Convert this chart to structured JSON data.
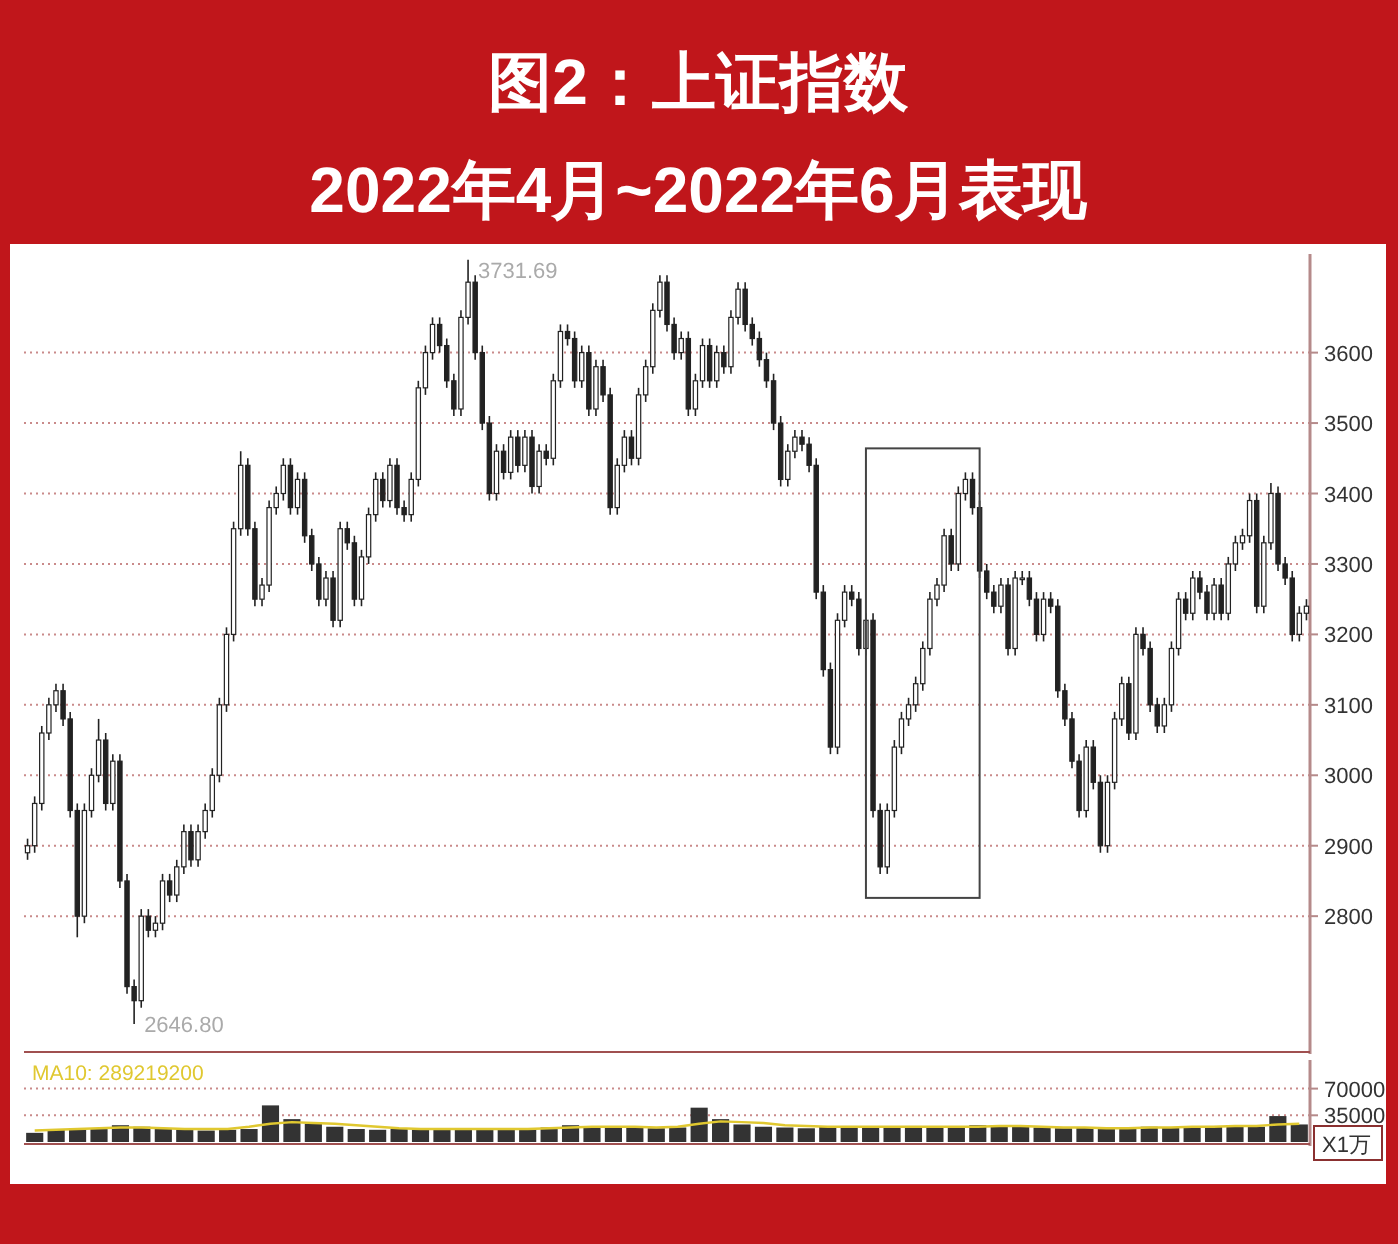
{
  "chart_data": [
    {
      "type": "candlestick",
      "title": "图2：上证指数",
      "subtitle": "2022年4月~2022年6月表现",
      "color": "#222222",
      "categories": [
        null,
        null,
        null,
        null,
        null,
        null,
        null,
        null,
        null,
        null,
        null,
        null,
        null,
        null,
        null,
        null,
        null,
        null,
        null,
        null,
        null,
        null,
        null,
        null,
        null,
        null,
        null,
        null,
        null,
        null,
        null,
        null,
        null,
        null,
        null,
        null,
        null,
        null,
        null,
        null,
        null,
        null,
        null,
        null,
        null,
        null,
        null,
        null,
        null,
        null,
        null,
        null,
        null,
        null,
        null,
        null,
        null,
        null,
        null,
        null,
        null,
        null,
        null,
        null,
        null,
        null,
        null,
        null,
        null,
        null,
        null,
        null,
        null,
        null,
        null,
        null,
        null,
        null,
        null,
        null,
        null,
        null,
        null,
        null,
        null,
        null,
        null,
        null,
        null,
        null,
        null,
        null,
        null,
        null,
        null,
        null,
        null,
        null,
        null,
        null,
        null,
        null,
        null,
        null,
        null,
        null,
        null,
        null,
        null,
        null,
        null,
        null,
        null,
        null,
        null,
        null,
        null,
        null,
        null,
        null,
        null,
        null,
        null,
        null,
        null,
        null,
        null,
        null,
        null,
        null,
        null,
        null,
        null,
        null,
        null,
        null,
        null,
        null,
        null,
        null,
        null,
        null,
        null,
        null,
        null,
        null,
        null,
        null,
        null,
        null,
        null,
        null,
        null,
        null,
        null,
        null,
        null,
        null,
        null,
        null,
        null,
        null,
        null,
        null,
        null,
        null,
        null,
        null,
        null,
        null,
        null,
        null,
        null,
        null,
        null,
        null,
        null,
        null,
        null,
        null,
        null
      ],
      "ohlc": [
        [
          2890,
          2910,
          2880,
          2900
        ],
        [
          2900,
          2970,
          2890,
          2960
        ],
        [
          2960,
          3070,
          2950,
          3060
        ],
        [
          3060,
          3110,
          3050,
          3100
        ],
        [
          3100,
          3130,
          3090,
          3120
        ],
        [
          3120,
          3130,
          3070,
          3080
        ],
        [
          3080,
          3090,
          2940,
          2950
        ],
        [
          2950,
          2960,
          2770,
          2800
        ],
        [
          2800,
          2960,
          2790,
          2950
        ],
        [
          2950,
          3010,
          2940,
          3000
        ],
        [
          3000,
          3080,
          2990,
          3050
        ],
        [
          3050,
          3060,
          2950,
          2960
        ],
        [
          2960,
          3030,
          2950,
          3020
        ],
        [
          3020,
          3030,
          2840,
          2850
        ],
        [
          2850,
          2860,
          2690,
          2700
        ],
        [
          2700,
          2710,
          2646.8,
          2680
        ],
        [
          2680,
          2810,
          2670,
          2800
        ],
        [
          2800,
          2810,
          2770,
          2780
        ],
        [
          2780,
          2800,
          2770,
          2790
        ],
        [
          2790,
          2860,
          2780,
          2850
        ],
        [
          2850,
          2860,
          2820,
          2830
        ],
        [
          2830,
          2880,
          2820,
          2870
        ],
        [
          2870,
          2930,
          2860,
          2920
        ],
        [
          2920,
          2930,
          2870,
          2880
        ],
        [
          2880,
          2930,
          2870,
          2920
        ],
        [
          2920,
          2960,
          2910,
          2950
        ],
        [
          2950,
          3010,
          2940,
          3000
        ],
        [
          3000,
          3110,
          2990,
          3100
        ],
        [
          3100,
          3210,
          3090,
          3200
        ],
        [
          3200,
          3360,
          3190,
          3350
        ],
        [
          3350,
          3460,
          3340,
          3440
        ],
        [
          3440,
          3450,
          3340,
          3350
        ],
        [
          3350,
          3360,
          3240,
          3250
        ],
        [
          3250,
          3280,
          3240,
          3270
        ],
        [
          3270,
          3390,
          3260,
          3380
        ],
        [
          3380,
          3410,
          3370,
          3400
        ],
        [
          3400,
          3450,
          3390,
          3440
        ],
        [
          3440,
          3450,
          3370,
          3380
        ],
        [
          3380,
          3430,
          3370,
          3420
        ],
        [
          3420,
          3430,
          3330,
          3340
        ],
        [
          3340,
          3350,
          3290,
          3300
        ],
        [
          3300,
          3310,
          3240,
          3250
        ],
        [
          3250,
          3290,
          3240,
          3280
        ],
        [
          3280,
          3290,
          3210,
          3220
        ],
        [
          3220,
          3360,
          3210,
          3350
        ],
        [
          3350,
          3360,
          3320,
          3330
        ],
        [
          3330,
          3340,
          3240,
          3250
        ],
        [
          3250,
          3320,
          3240,
          3310
        ],
        [
          3310,
          3380,
          3300,
          3370
        ],
        [
          3370,
          3430,
          3360,
          3420
        ],
        [
          3420,
          3430,
          3380,
          3390
        ],
        [
          3390,
          3450,
          3380,
          3440
        ],
        [
          3440,
          3450,
          3370,
          3380
        ],
        [
          3380,
          3390,
          3360,
          3370
        ],
        [
          3370,
          3430,
          3360,
          3420
        ],
        [
          3420,
          3560,
          3410,
          3550
        ],
        [
          3550,
          3610,
          3540,
          3600
        ],
        [
          3600,
          3650,
          3590,
          3640
        ],
        [
          3640,
          3650,
          3600,
          3610
        ],
        [
          3610,
          3620,
          3550,
          3560
        ],
        [
          3560,
          3570,
          3510,
          3520
        ],
        [
          3520,
          3660,
          3510,
          3650
        ],
        [
          3650,
          3731.69,
          3640,
          3700
        ],
        [
          3700,
          3710,
          3590,
          3600
        ],
        [
          3600,
          3610,
          3490,
          3500
        ],
        [
          3500,
          3510,
          3390,
          3400
        ],
        [
          3400,
          3470,
          3390,
          3460
        ],
        [
          3460,
          3470,
          3420,
          3430
        ],
        [
          3430,
          3490,
          3420,
          3480
        ],
        [
          3480,
          3490,
          3430,
          3440
        ],
        [
          3440,
          3490,
          3430,
          3480
        ],
        [
          3480,
          3490,
          3400,
          3410
        ],
        [
          3410,
          3470,
          3400,
          3460
        ],
        [
          3460,
          3470,
          3440,
          3450
        ],
        [
          3450,
          3570,
          3440,
          3560
        ],
        [
          3560,
          3640,
          3550,
          3630
        ],
        [
          3630,
          3640,
          3610,
          3620
        ],
        [
          3620,
          3630,
          3550,
          3560
        ],
        [
          3560,
          3610,
          3550,
          3600
        ],
        [
          3600,
          3610,
          3510,
          3520
        ],
        [
          3520,
          3590,
          3510,
          3580
        ],
        [
          3580,
          3590,
          3530,
          3540
        ],
        [
          3540,
          3550,
          3370,
          3380
        ],
        [
          3380,
          3450,
          3370,
          3440
        ],
        [
          3440,
          3490,
          3430,
          3480
        ],
        [
          3480,
          3490,
          3440,
          3450
        ],
        [
          3450,
          3550,
          3440,
          3540
        ],
        [
          3540,
          3590,
          3530,
          3580
        ],
        [
          3580,
          3670,
          3570,
          3660
        ],
        [
          3660,
          3710,
          3650,
          3700
        ],
        [
          3700,
          3710,
          3630,
          3640
        ],
        [
          3640,
          3650,
          3590,
          3600
        ],
        [
          3600,
          3630,
          3590,
          3620
        ],
        [
          3620,
          3630,
          3510,
          3520
        ],
        [
          3520,
          3570,
          3510,
          3560
        ],
        [
          3560,
          3620,
          3550,
          3610
        ],
        [
          3610,
          3620,
          3550,
          3560
        ],
        [
          3560,
          3610,
          3550,
          3600
        ],
        [
          3600,
          3610,
          3570,
          3580
        ],
        [
          3580,
          3660,
          3570,
          3650
        ],
        [
          3650,
          3700,
          3640,
          3690
        ],
        [
          3690,
          3700,
          3630,
          3640
        ],
        [
          3640,
          3650,
          3610,
          3620
        ],
        [
          3620,
          3630,
          3580,
          3590
        ],
        [
          3590,
          3600,
          3550,
          3560
        ],
        [
          3560,
          3570,
          3490,
          3500
        ],
        [
          3500,
          3510,
          3410,
          3420
        ],
        [
          3420,
          3470,
          3410,
          3460
        ],
        [
          3460,
          3490,
          3450,
          3480
        ],
        [
          3480,
          3490,
          3460,
          3470
        ],
        [
          3470,
          3480,
          3430,
          3440
        ],
        [
          3440,
          3450,
          3250,
          3260
        ],
        [
          3260,
          3270,
          3140,
          3150
        ],
        [
          3150,
          3160,
          3030,
          3040
        ],
        [
          3040,
          3230,
          3030,
          3220
        ],
        [
          3220,
          3270,
          3210,
          3260
        ],
        [
          3260,
          3270,
          3240,
          3250
        ],
        [
          3250,
          3260,
          3170,
          3180
        ],
        [
          3180,
          3230,
          3170,
          3220
        ],
        [
          3220,
          3230,
          2940,
          2950
        ],
        [
          2950,
          2960,
          2860,
          2870
        ],
        [
          2870,
          2960,
          2860,
          2950
        ],
        [
          2950,
          3050,
          2940,
          3040
        ],
        [
          3040,
          3090,
          3030,
          3080
        ],
        [
          3080,
          3110,
          3070,
          3100
        ],
        [
          3100,
          3140,
          3090,
          3130
        ],
        [
          3130,
          3190,
          3120,
          3180
        ],
        [
          3180,
          3260,
          3170,
          3250
        ],
        [
          3250,
          3280,
          3240,
          3270
        ],
        [
          3270,
          3350,
          3260,
          3340
        ],
        [
          3340,
          3350,
          3290,
          3300
        ],
        [
          3300,
          3410,
          3290,
          3400
        ],
        [
          3400,
          3430,
          3390,
          3420
        ],
        [
          3420,
          3430,
          3370,
          3380
        ],
        [
          3380,
          3390,
          3280,
          3290
        ],
        [
          3290,
          3300,
          3250,
          3260
        ],
        [
          3260,
          3270,
          3230,
          3240
        ],
        [
          3240,
          3280,
          3230,
          3270
        ],
        [
          3270,
          3280,
          3170,
          3180
        ],
        [
          3180,
          3290,
          3170,
          3280
        ],
        [
          3280,
          3290,
          3270,
          3280
        ],
        [
          3280,
          3290,
          3240,
          3250
        ],
        [
          3250,
          3260,
          3190,
          3200
        ],
        [
          3200,
          3260,
          3190,
          3250
        ],
        [
          3250,
          3260,
          3230,
          3240
        ],
        [
          3240,
          3250,
          3110,
          3120
        ],
        [
          3120,
          3130,
          3070,
          3080
        ],
        [
          3080,
          3090,
          3010,
          3020
        ],
        [
          3020,
          3030,
          2940,
          2950
        ],
        [
          2950,
          3050,
          2940,
          3040
        ],
        [
          3040,
          3050,
          2980,
          2990
        ],
        [
          2990,
          3000,
          2890,
          2900
        ],
        [
          2900,
          3000,
          2890,
          2990
        ],
        [
          2990,
          3090,
          2980,
          3080
        ],
        [
          3080,
          3140,
          3070,
          3130
        ],
        [
          3130,
          3140,
          3050,
          3060
        ],
        [
          3060,
          3210,
          3050,
          3200
        ],
        [
          3200,
          3210,
          3170,
          3180
        ],
        [
          3180,
          3190,
          3090,
          3100
        ],
        [
          3100,
          3110,
          3060,
          3070
        ],
        [
          3070,
          3110,
          3060,
          3100
        ],
        [
          3100,
          3190,
          3090,
          3180
        ],
        [
          3180,
          3260,
          3170,
          3250
        ],
        [
          3250,
          3260,
          3220,
          3230
        ],
        [
          3230,
          3290,
          3220,
          3280
        ],
        [
          3280,
          3290,
          3250,
          3260
        ],
        [
          3260,
          3270,
          3220,
          3230
        ],
        [
          3230,
          3280,
          3220,
          3270
        ],
        [
          3270,
          3280,
          3220,
          3230
        ],
        [
          3230,
          3310,
          3220,
          3300
        ],
        [
          3300,
          3340,
          3290,
          3330
        ],
        [
          3330,
          3350,
          3320,
          3340
        ],
        [
          3340,
          3400,
          3330,
          3390
        ],
        [
          3390,
          3400,
          3230,
          3240
        ],
        [
          3240,
          3340,
          3230,
          3330
        ],
        [
          3330,
          3415,
          3320,
          3400
        ],
        [
          3400,
          3410,
          3290,
          3300
        ],
        [
          3300,
          3310,
          3270,
          3280
        ],
        [
          3280,
          3290,
          3190,
          3200
        ],
        [
          3200,
          3240,
          3190,
          3230
        ],
        [
          3230,
          3250,
          3220,
          3240
        ]
      ],
      "ylim": [
        2610,
        3740
      ],
      "yticks": [
        2800,
        2900,
        3000,
        3100,
        3200,
        3300,
        3400,
        3500,
        3600
      ],
      "grid": "y",
      "annotations": [
        "3731.69",
        "2646.80"
      ]
    },
    {
      "type": "bar",
      "ylabel": "X1万",
      "legend": "top left",
      "categories": [
        null,
        null,
        null,
        null,
        null,
        null,
        null,
        null,
        null,
        null,
        null,
        null,
        null,
        null,
        null,
        null,
        null,
        null,
        null,
        null,
        null,
        null,
        null,
        null,
        null,
        null,
        null,
        null,
        null,
        null,
        null,
        null,
        null,
        null,
        null,
        null,
        null,
        null,
        null,
        null,
        null,
        null,
        null,
        null,
        null,
        null,
        null,
        null,
        null,
        null,
        null,
        null,
        null,
        null,
        null,
        null,
        null,
        null,
        null,
        null
      ],
      "series": [
        {
          "color": "#333333",
          "values": [
            12000,
            16000,
            18000,
            17000,
            22000,
            20000,
            18000,
            16000,
            15000,
            16000,
            17000,
            48000,
            30000,
            24000,
            20000,
            17000,
            16000,
            17000,
            16000,
            17000,
            18000,
            17000,
            16000,
            18000,
            19000,
            22000,
            20000,
            19000,
            20000,
            18000,
            19000,
            45000,
            30000,
            23000,
            20000,
            19000,
            18000,
            20000,
            21000,
            20000,
            19000,
            21000,
            20000,
            19000,
            22000,
            21000,
            20000,
            19000,
            18000,
            19000,
            17000,
            18000,
            20000,
            19000,
            20000,
            21000,
            22000,
            20000,
            34000,
            23000
          ]
        },
        {
          "type": "line",
          "name": "MA10: 289219200",
          "color": "#e0c830",
          "values": [
            15000,
            16000,
            17000,
            18000,
            19000,
            19000,
            18000,
            17000,
            17000,
            17000,
            20000,
            24000,
            26000,
            25000,
            24000,
            22000,
            20000,
            18000,
            17000,
            17000,
            17000,
            17000,
            17000,
            17000,
            18000,
            19000,
            20000,
            20000,
            20000,
            19000,
            20000,
            24000,
            27000,
            26000,
            25000,
            22000,
            21000,
            20000,
            20000,
            20000,
            20000,
            20000,
            20000,
            20000,
            20000,
            21000,
            21000,
            20000,
            19000,
            19000,
            18000,
            18000,
            19000,
            19000,
            20000,
            20000,
            21000,
            21000,
            23000,
            24000
          ]
        }
      ],
      "ylim": [
        0,
        107500
      ],
      "yticks": [
        35000,
        70000
      ],
      "grid": "y"
    }
  ]
}
